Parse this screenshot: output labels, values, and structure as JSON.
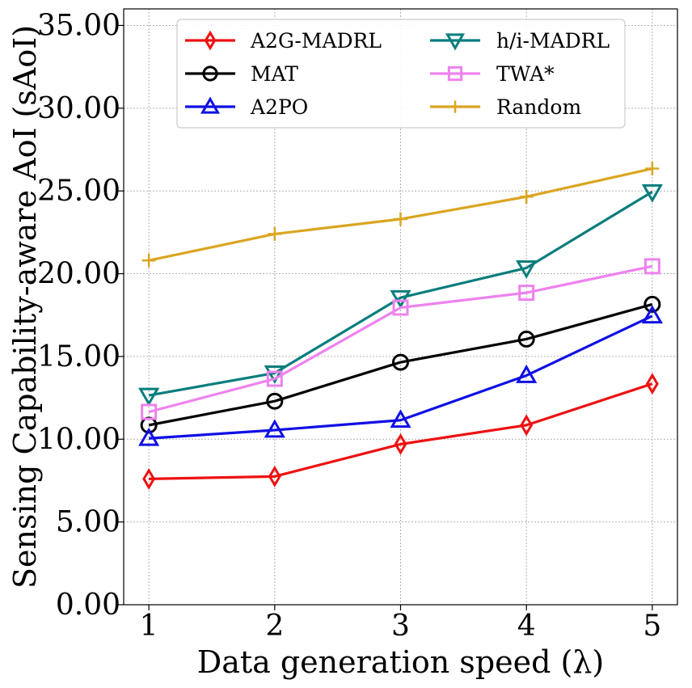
{
  "chart_data": {
    "type": "line",
    "title": "",
    "xlabel": "Data generation speed (λ)",
    "ylabel": "Sensing Capability-aware AoI (sAoI)",
    "x": [
      1,
      2,
      3,
      4,
      5
    ],
    "x_tick_labels": [
      "1",
      "2",
      "3",
      "4",
      "5"
    ],
    "xlim": [
      0.8,
      5.2
    ],
    "ylim": [
      0,
      36
    ],
    "y_ticks": [
      0,
      5,
      10,
      15,
      20,
      25,
      30,
      35
    ],
    "y_tick_labels": [
      "0.00",
      "5.00",
      "10.00",
      "15.00",
      "20.00",
      "25.00",
      "30.00",
      "35.00"
    ],
    "grid": true,
    "legend_position": "top-center",
    "series": [
      {
        "name": "A2G-MADRL",
        "color": "#ee1111",
        "marker": "diamond",
        "values": [
          7.6,
          7.75,
          9.7,
          10.85,
          13.35
        ]
      },
      {
        "name": "MAT",
        "color": "#000000",
        "marker": "circle",
        "values": [
          10.85,
          12.3,
          14.65,
          16.05,
          18.15
        ]
      },
      {
        "name": "A2PO",
        "color": "#1010e6",
        "marker": "triangle-up",
        "values": [
          10.05,
          10.55,
          11.15,
          13.85,
          17.45
        ]
      },
      {
        "name": "h/i-MADRL",
        "color": "#0a7d7d",
        "marker": "triangle-down",
        "values": [
          12.65,
          14.0,
          18.55,
          20.35,
          24.95
        ]
      },
      {
        "name": "TWA*",
        "color": "#ee82ee",
        "marker": "square",
        "values": [
          11.65,
          13.65,
          17.95,
          18.85,
          20.45
        ]
      },
      {
        "name": "Random",
        "color": "#daa520",
        "marker": "plus",
        "values": [
          20.8,
          22.4,
          23.3,
          24.65,
          26.35
        ]
      }
    ]
  }
}
